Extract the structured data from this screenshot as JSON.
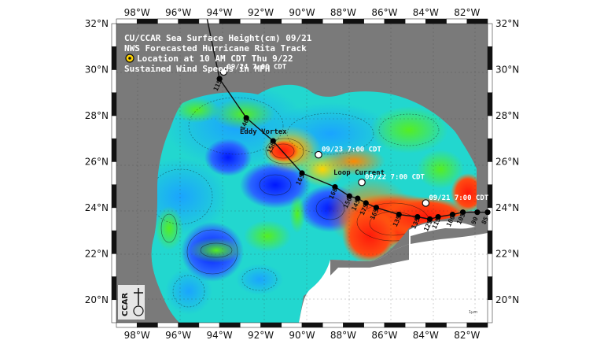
{
  "map": {
    "title_lines": [
      "CU/CCAR Sea Surface Height(cm) 09/21",
      "NWS Forecasted Hurricane Rita Track",
      "Location at 10 AM CDT Thu 9/22",
      "Sustained Wind Speeds in MPH"
    ],
    "lon_labels": [
      "98°W",
      "96°W",
      "94°W",
      "92°W",
      "90°W",
      "88°W",
      "86°W",
      "84°W",
      "82°W"
    ],
    "lat_labels": [
      "32°N",
      "30°N",
      "28°N",
      "26°N",
      "24°N",
      "22°N",
      "20°N"
    ],
    "lon_range": [
      -99,
      -81
    ],
    "lat_range": [
      19,
      32
    ],
    "features": {
      "eddy": "Eddy Vortex",
      "loop": "Loop Current"
    },
    "track_dates": [
      {
        "label": "09/24 7:00 CDT",
        "lon": -93.8,
        "lat": 29.9
      },
      {
        "label": "09/23 7:00 CDT",
        "lon": -89.2,
        "lat": 26.3
      },
      {
        "label": "09/22 7:00 CDT",
        "lon": -87.1,
        "lat": 25.1
      },
      {
        "label": "09/21 7:00 CDT",
        "lon": -84.0,
        "lat": 24.2
      }
    ],
    "wind_speeds": [
      {
        "v": "115",
        "lon": -94.0,
        "lat": 29.6
      },
      {
        "v": "140",
        "lon": -92.7,
        "lat": 27.9
      },
      {
        "v": "150",
        "lon": -91.4,
        "lat": 26.9
      },
      {
        "v": "165",
        "lon": -90.0,
        "lat": 25.5
      },
      {
        "v": "160",
        "lon": -88.4,
        "lat": 24.9
      },
      {
        "v": "150",
        "lon": -87.7,
        "lat": 24.5
      },
      {
        "v": "145",
        "lon": -87.3,
        "lat": 24.4
      },
      {
        "v": "175",
        "lon": -86.9,
        "lat": 24.2
      },
      {
        "v": "165",
        "lon": -86.4,
        "lat": 24.0
      },
      {
        "v": "135",
        "lon": -85.3,
        "lat": 23.7
      },
      {
        "v": "135",
        "lon": -84.4,
        "lat": 23.6
      },
      {
        "v": "125",
        "lon": -83.8,
        "lat": 23.5
      },
      {
        "v": "115",
        "lon": -83.4,
        "lat": 23.6
      },
      {
        "v": "100",
        "lon": -82.7,
        "lat": 23.7
      },
      {
        "v": "105",
        "lon": -82.2,
        "lat": 23.8
      },
      {
        "v": "90",
        "lon": -81.5,
        "lat": 23.8
      },
      {
        "v": "85",
        "lon": -81.0,
        "lat": 23.8
      }
    ],
    "logo_text": "CCAR",
    "scale_text": "1μm",
    "colors": {
      "land": "#7a7a7a",
      "ocean_low": "#0033ff",
      "ocean_mid": "#33dd33",
      "ocean_high": "#ff2a1a",
      "track": "#111111",
      "marker": "#000000"
    }
  }
}
